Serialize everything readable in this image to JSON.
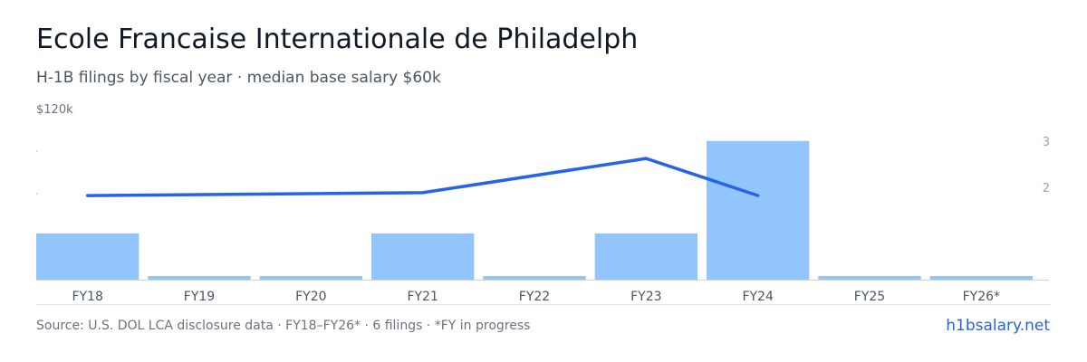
{
  "header": {
    "title": "Ecole Francaise Internationale de Philadelph",
    "subtitle": "H-1B filings by fiscal year · median base salary $60k"
  },
  "chart_data": {
    "type": "bar",
    "categories": [
      "FY18",
      "FY19",
      "FY20",
      "FY21",
      "FY22",
      "FY23",
      "FY24",
      "FY25",
      "FY26*"
    ],
    "series": [
      {
        "type": "bar",
        "axis": "right",
        "values": [
          1,
          0,
          0,
          1,
          0,
          1,
          3,
          0,
          0
        ]
      },
      {
        "type": "line",
        "axis": "left",
        "values": [
          59000,
          null,
          null,
          61000,
          null,
          85000,
          59000,
          null,
          null
        ]
      }
    ],
    "left_axis": {
      "top_label": "$120k",
      "max": 120000,
      "min": 0
    },
    "right_axis": {
      "tick_labels": [
        "3",
        "2"
      ],
      "max": 3.7,
      "min": 0
    },
    "colors": {
      "bar": "#93c5fd",
      "line": "#2563eb",
      "axis": "#d1d5db"
    }
  },
  "footer": {
    "source": "Source: U.S. DOL LCA disclosure data · FY18–FY26* · 6 filings · *FY in progress",
    "brand": "h1bsalary.net"
  }
}
